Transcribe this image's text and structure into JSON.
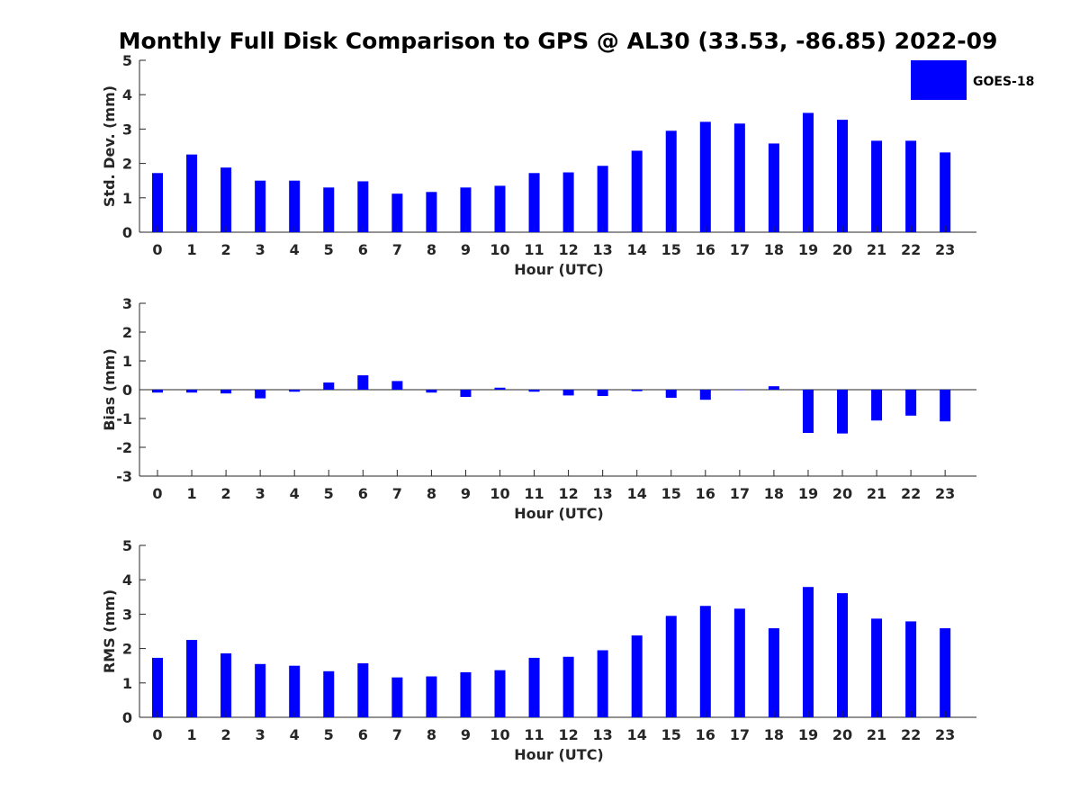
{
  "title": "Monthly Full Disk Comparison to GPS @ AL30 (33.53, -86.85) 2022-09",
  "legend": {
    "label": "GOES-18",
    "color": "#0000ff"
  },
  "chart_data": [
    {
      "type": "bar",
      "name": "std",
      "ylabel": "Std. Dev. (mm)",
      "xlabel": "Hour (UTC)",
      "ylim": [
        0,
        5
      ],
      "yticks": [
        0,
        1,
        2,
        3,
        4,
        5
      ],
      "categories": [
        0,
        1,
        2,
        3,
        4,
        5,
        6,
        7,
        8,
        9,
        10,
        11,
        12,
        13,
        14,
        15,
        16,
        17,
        18,
        19,
        20,
        21,
        22,
        23
      ],
      "series": [
        {
          "name": "GOES-18",
          "values": [
            1.72,
            2.26,
            1.88,
            1.5,
            1.5,
            1.3,
            1.48,
            1.12,
            1.17,
            1.3,
            1.35,
            1.72,
            1.74,
            1.93,
            2.37,
            2.95,
            3.21,
            3.16,
            2.58,
            3.47,
            3.27,
            2.66,
            2.66,
            2.32
          ]
        }
      ]
    },
    {
      "type": "bar",
      "name": "bias",
      "ylabel": "Bias (mm)",
      "xlabel": "Hour (UTC)",
      "ylim": [
        -3,
        3
      ],
      "yticks": [
        -3,
        -2,
        -1,
        0,
        1,
        2,
        3
      ],
      "categories": [
        0,
        1,
        2,
        3,
        4,
        5,
        6,
        7,
        8,
        9,
        10,
        11,
        12,
        13,
        14,
        15,
        16,
        17,
        18,
        19,
        20,
        21,
        22,
        23
      ],
      "series": [
        {
          "name": "GOES-18",
          "values": [
            -0.1,
            -0.1,
            -0.13,
            -0.3,
            -0.07,
            0.25,
            0.5,
            0.3,
            -0.1,
            -0.25,
            0.07,
            -0.07,
            -0.2,
            -0.22,
            -0.05,
            -0.28,
            -0.35,
            0.0,
            0.12,
            -1.5,
            -1.52,
            -1.07,
            -0.9,
            -1.1
          ]
        }
      ]
    },
    {
      "type": "bar",
      "name": "rms",
      "ylabel": "RMS (mm)",
      "xlabel": "Hour (UTC)",
      "ylim": [
        0,
        5
      ],
      "yticks": [
        0,
        1,
        2,
        3,
        4,
        5
      ],
      "categories": [
        0,
        1,
        2,
        3,
        4,
        5,
        6,
        7,
        8,
        9,
        10,
        11,
        12,
        13,
        14,
        15,
        16,
        17,
        18,
        19,
        20,
        21,
        22,
        23
      ],
      "series": [
        {
          "name": "GOES-18",
          "values": [
            1.73,
            2.25,
            1.86,
            1.55,
            1.5,
            1.34,
            1.57,
            1.16,
            1.19,
            1.31,
            1.37,
            1.73,
            1.76,
            1.95,
            2.38,
            2.95,
            3.24,
            3.16,
            2.59,
            3.79,
            3.61,
            2.87,
            2.79,
            2.59
          ]
        }
      ]
    }
  ]
}
